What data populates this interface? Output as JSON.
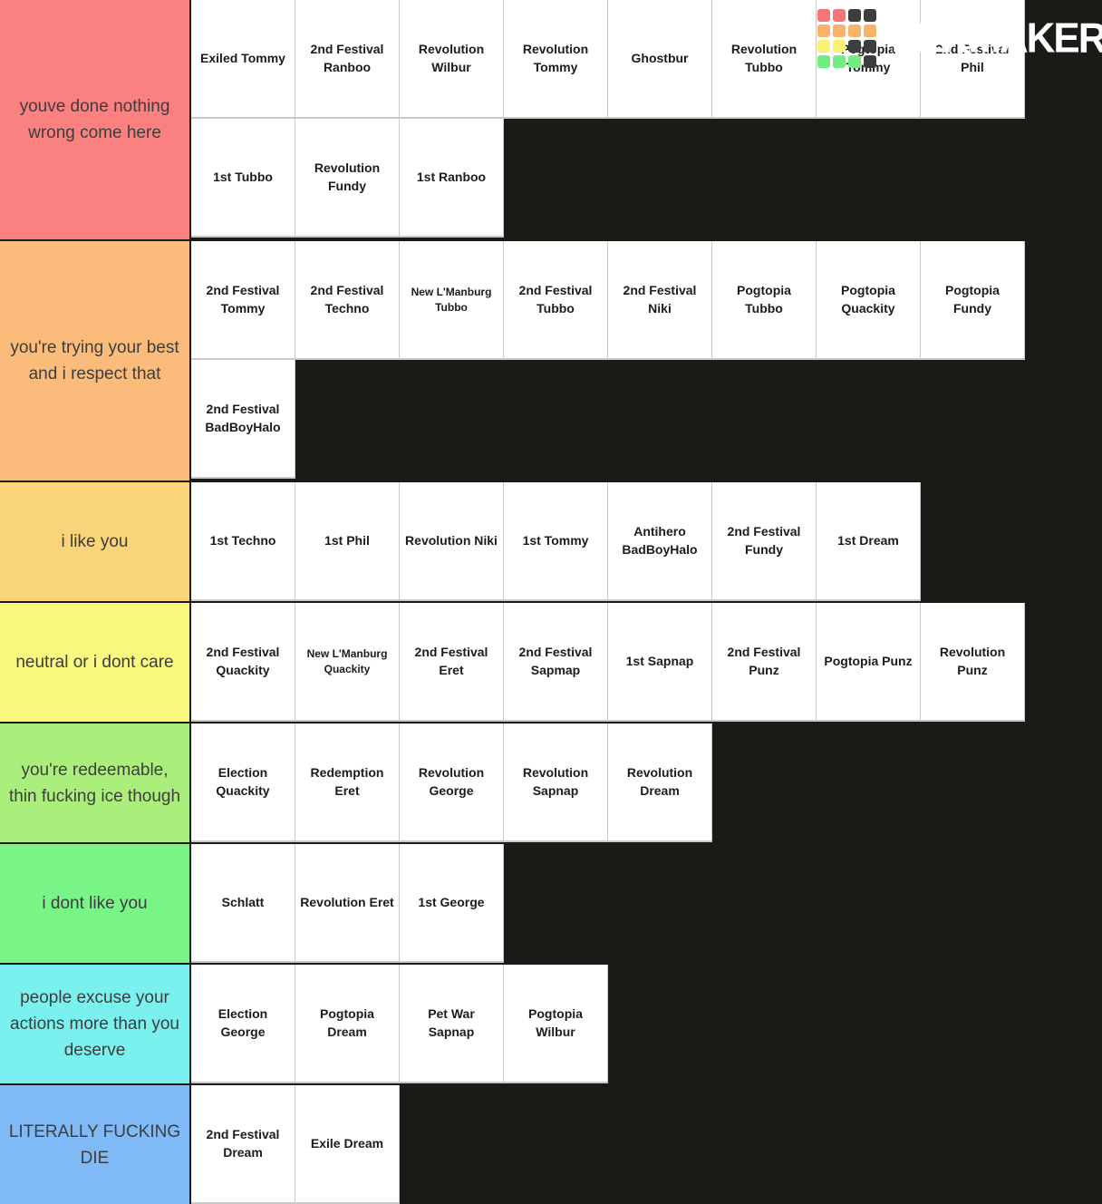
{
  "page": {
    "background_color": "#1a1a16",
    "card_background": "#ffffff",
    "card_border_color": "#c9c9c9",
    "label_text_color": "#3d3d3d",
    "card_text_color": "#1c1c1c"
  },
  "logo": {
    "text": "TIERMAKER",
    "square_colors": [
      "#f47676",
      "#f47676",
      "#3d3d3d",
      "#3d3d3d",
      "#f9b269",
      "#f9b269",
      "#f9b269",
      "#f9b269",
      "#fbf176",
      "#fbf176",
      "#3d3d3d",
      "#3d3d3d",
      "#70ee80",
      "#70ee80",
      "#70ee80",
      "#3d3d3d"
    ]
  },
  "tiers": [
    {
      "label": "youve done nothing wrong come here",
      "color": "#fb8080",
      "items": [
        "Exiled Tommy",
        "2nd Festival Ranboo",
        "Revolution Wilbur",
        "Revolution Tommy",
        "Ghostbur",
        "Revolution Tubbo",
        "Pogtopia Tommy",
        "2nd Festival Phil",
        "1st Tubbo",
        "Revolution Fundy",
        "1st Ranboo"
      ]
    },
    {
      "label": "you're trying your best and i respect that",
      "color": "#fbbc7b",
      "items": [
        "2nd Festival Tommy",
        "2nd Festival Techno",
        "New L'Manburg Tubbo",
        "2nd Festival Tubbo",
        "2nd Festival Niki",
        "Pogtopia Tubbo",
        "Pogtopia Quackity",
        "Pogtopia Fundy",
        "2nd Festival BadBoyHalo"
      ]
    },
    {
      "label": "i like you",
      "color": "#f9d478",
      "items": [
        "1st Techno",
        "1st Phil",
        "Revolution Niki",
        "1st Tommy",
        "Antihero BadBoyHalo",
        "2nd Festival Fundy",
        "1st Dream"
      ]
    },
    {
      "label": "neutral or i dont care",
      "color": "#f9f97d",
      "items": [
        "2nd Festival Quackity",
        "New L'Manburg Quackity",
        "2nd Festival Eret",
        "2nd Festival Sapmap",
        "1st Sapnap",
        "2nd Festival Punz",
        "Pogtopia Punz",
        "Revolution Punz"
      ]
    },
    {
      "label": "you're redeemable, thin fucking ice though",
      "color": "#aaef7c",
      "items": [
        "Election Quackity",
        "Redemption Eret",
        "Revolution George",
        "Revolution Sapnap",
        "Revolution Dream"
      ]
    },
    {
      "label": "i dont like you",
      "color": "#79f487",
      "items": [
        "Schlatt",
        "Revolution Eret",
        "1st George"
      ]
    },
    {
      "label": "people excuse your actions more than you deserve",
      "color": "#7af1ef",
      "items": [
        "Election George",
        "Pogtopia Dream",
        "Pet War Sapnap",
        "Pogtopia Wilbur"
      ]
    },
    {
      "label": "LITERALLY FUCKING DIE",
      "color": "#7fb9f6",
      "items": [
        "2nd Festival Dream",
        "Exile Dream"
      ]
    }
  ]
}
